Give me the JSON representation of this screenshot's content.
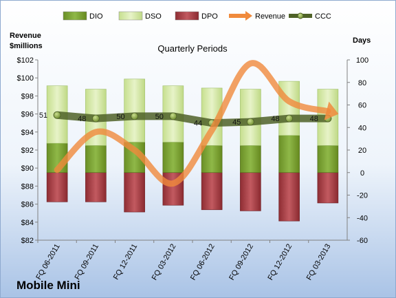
{
  "chart_data": {
    "type": "bar",
    "title": "Quarterly Periods",
    "company": "Mobile Mini",
    "left_axis_title": [
      "Revenue",
      "$millions"
    ],
    "right_axis_title": "Days",
    "left_ylim": [
      82,
      102
    ],
    "left_tick_labels": [
      "$82",
      "$84",
      "$86",
      "$88",
      "$90",
      "$92",
      "$94",
      "$96",
      "$98",
      "$100",
      "$102"
    ],
    "right_ylim": [
      -60,
      100
    ],
    "right_tick_labels": [
      "-60",
      "-40",
      "-20",
      "0",
      "20",
      "40",
      "60",
      "80",
      "100"
    ],
    "categories": [
      "FQ 06-2011",
      "FQ 09-2011",
      "FQ 12-2011",
      "FQ 03-2012",
      "FQ 06-2012",
      "FQ 09-2012",
      "FQ 12-2012",
      "FQ 03-2013"
    ],
    "series": [
      {
        "name": "DIO",
        "type": "stacked-bar",
        "color": "#7da332",
        "values": [
          26,
          24,
          27,
          27,
          24,
          24,
          33,
          24
        ]
      },
      {
        "name": "DSO",
        "type": "stacked-bar",
        "color": "#d6eaa8",
        "values": [
          51,
          50,
          56,
          50,
          51,
          50,
          48,
          50
        ]
      },
      {
        "name": "DPO",
        "type": "stacked-bar",
        "color": "#b2434a",
        "values": [
          -26,
          -26,
          -35,
          -29,
          -33,
          -34,
          -43,
          -27
        ]
      },
      {
        "name": "Revenue",
        "type": "line",
        "axis": "left",
        "color": "#f08a3c",
        "values": [
          89.8,
          94.0,
          92.0,
          88.3,
          94.2,
          101.6,
          97.4,
          96.3
        ]
      },
      {
        "name": "CCC",
        "type": "line",
        "axis": "right",
        "color": "#4f6228",
        "values": [
          51,
          48,
          50,
          50,
          44,
          45,
          48,
          48
        ],
        "labels": [
          "51",
          "48",
          "50",
          "50",
          "44",
          "45",
          "48",
          "48"
        ]
      }
    ],
    "legend": [
      "DIO",
      "DSO",
      "DPO",
      "Revenue",
      "CCC"
    ],
    "legend_position": "top",
    "grid": false
  }
}
